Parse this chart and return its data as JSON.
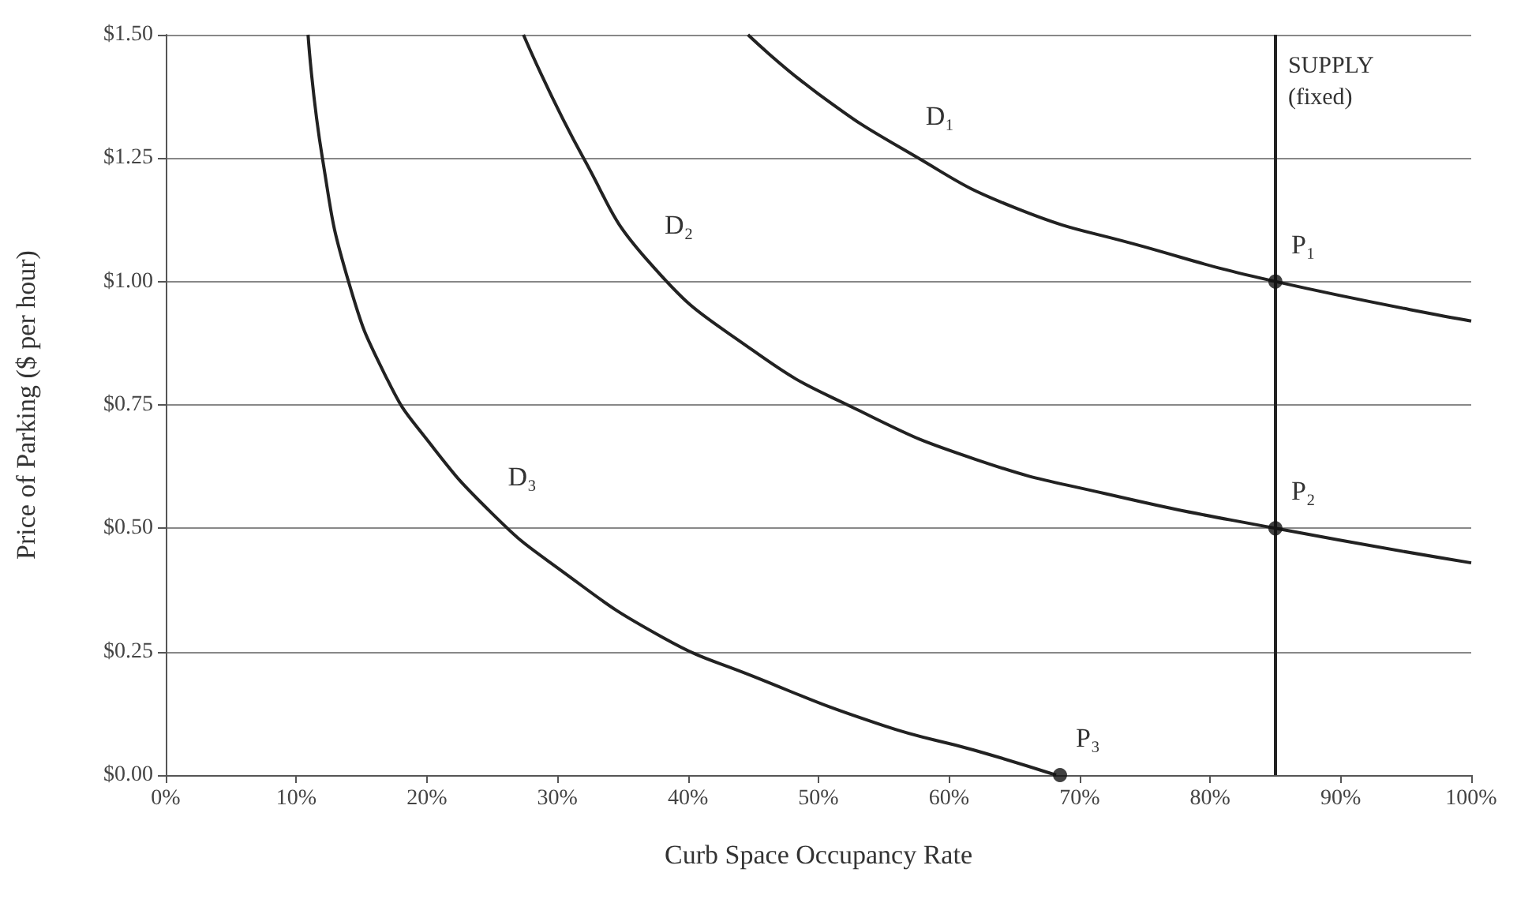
{
  "chart_data": {
    "type": "line",
    "xlabel": "Curb Space Occupancy Rate",
    "ylabel": "Price of Parking ($ per hour)",
    "xlim": [
      0,
      100
    ],
    "xticks": [
      {
        "value": 0,
        "label": "0%"
      },
      {
        "value": 10,
        "label": "10%"
      },
      {
        "value": 20,
        "label": "20%"
      },
      {
        "value": 30,
        "label": "30%"
      },
      {
        "value": 40,
        "label": "40%"
      },
      {
        "value": 50,
        "label": "50%"
      },
      {
        "value": 60,
        "label": "60%"
      },
      {
        "value": 70,
        "label": "70%"
      },
      {
        "value": 80,
        "label": "80%"
      },
      {
        "value": 90,
        "label": "90%"
      },
      {
        "value": 100,
        "label": "100%"
      }
    ],
    "ylim": [
      0,
      1.5
    ],
    "yticks": [
      {
        "value": 0,
        "label": "$0.00"
      },
      {
        "value": 0.25,
        "label": "$0.25"
      },
      {
        "value": 0.5,
        "label": "$0.50"
      },
      {
        "value": 0.75,
        "label": "$0.75"
      },
      {
        "value": 1,
        "label": "$1.00"
      },
      {
        "value": 1.25,
        "label": "$1.25"
      },
      {
        "value": 1.5,
        "label": "$1.50"
      }
    ],
    "grid": "y",
    "marker": "none",
    "series": [
      {
        "color": "#222222",
        "x": [
          44.6,
          50,
          57,
          65,
          75,
          85,
          100
        ],
        "values": [
          1.5,
          1.38,
          1.26,
          1.15,
          1.07,
          1.0,
          0.92
        ]
      },
      {
        "color": "#222222",
        "x": [
          27.4,
          32,
          37,
          45,
          53,
          62,
          72,
          85,
          100
        ],
        "values": [
          1.5,
          1.25,
          1.04,
          0.86,
          0.74,
          0.64,
          0.57,
          0.5,
          0.43
        ]
      },
      {
        "color": "#222222",
        "x": [
          10.9,
          12,
          14,
          17,
          20,
          25,
          30,
          38,
          45,
          55,
          62,
          68.2
        ],
        "values": [
          1.5,
          1.25,
          1.0,
          0.8,
          0.68,
          0.53,
          0.42,
          0.28,
          0.2,
          0.1,
          0.05,
          0
        ]
      },
      {
        "type": "scatter",
        "marker": "circle",
        "color": "#111111",
        "x": [
          85,
          85,
          68.5
        ],
        "values": [
          1.0,
          0.5,
          0
        ]
      }
    ],
    "ref_lines": [
      {
        "axis": "x",
        "value": 85,
        "label": "SUPPLY\n(fixed)",
        "color": "#222222"
      }
    ],
    "annotations": [
      {
        "text": "D₁",
        "x": 57,
        "y": 1.26
      },
      {
        "text": "D₂",
        "x": 37,
        "y": 1.04
      },
      {
        "text": "D₃",
        "x": 25,
        "y": 0.53
      },
      {
        "text": "P₁",
        "x": 85,
        "y": 1.0
      },
      {
        "text": "P₂",
        "x": 85,
        "y": 0.5
      },
      {
        "text": "P₃",
        "x": 68.5,
        "y": 0
      }
    ]
  }
}
